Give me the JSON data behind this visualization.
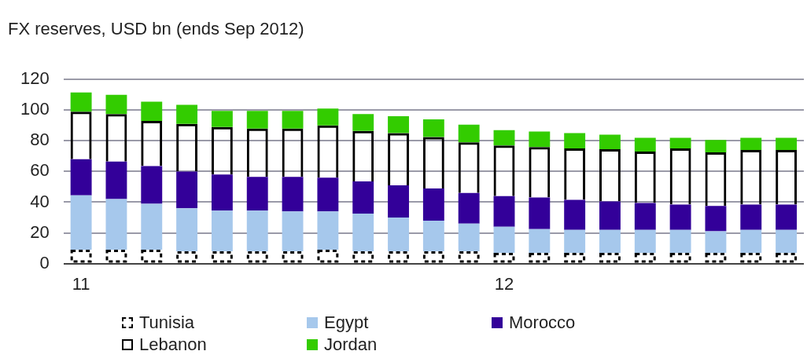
{
  "chart_data": {
    "type": "bar",
    "title": "FX reserves, USD bn (ends Sep 2012)",
    "stacked": true,
    "grid": "y",
    "legend": "bottom left",
    "categories": [
      "11",
      null,
      null,
      null,
      null,
      null,
      null,
      null,
      null,
      null,
      null,
      null,
      "12",
      null,
      null,
      null,
      null,
      null,
      null,
      null,
      null
    ],
    "ylim": [
      0,
      120
    ],
    "yticks": [
      0,
      20,
      40,
      60,
      80,
      100,
      120
    ],
    "series": [
      {
        "name": "Tunisia",
        "color": "#000000",
        "line_style": "dashed",
        "values": [
          9,
          9,
          9,
          8,
          8,
          8,
          8,
          9,
          8,
          8,
          8,
          8,
          7,
          7,
          7,
          7,
          7,
          7,
          7,
          7,
          7
        ]
      },
      {
        "name": "Egypt",
        "color": "#a6c8ec",
        "values": [
          35.5,
          33,
          30,
          28,
          26.5,
          26.5,
          26,
          25,
          24.5,
          22,
          20,
          18,
          17,
          15.5,
          15,
          15,
          15,
          15,
          14,
          15,
          15
        ]
      },
      {
        "name": "Morocco",
        "color": "#330099",
        "values": [
          23.5,
          24.5,
          24.5,
          24,
          23.5,
          22,
          22.5,
          22,
          21,
          21,
          21,
          20,
          20,
          20.5,
          19.5,
          18.5,
          17.5,
          16.5,
          16.5,
          16.5,
          16.5
        ]
      },
      {
        "name": "Lebanon",
        "color": "#000000",
        "line_style": "solid",
        "values": [
          31,
          31,
          29.5,
          31,
          31,
          31.5,
          31.5,
          34,
          33,
          34,
          33.5,
          33,
          33,
          33,
          33.5,
          34,
          33.5,
          36.5,
          35,
          35.5,
          35.5
        ]
      },
      {
        "name": "Jordan",
        "color": "#33cc00",
        "values": [
          12.5,
          12.5,
          12.5,
          12.5,
          10.5,
          11.5,
          11.5,
          11,
          11,
          11,
          11.5,
          11.5,
          10,
          10,
          10,
          9.5,
          9,
          7,
          8,
          8,
          8
        ]
      }
    ]
  }
}
